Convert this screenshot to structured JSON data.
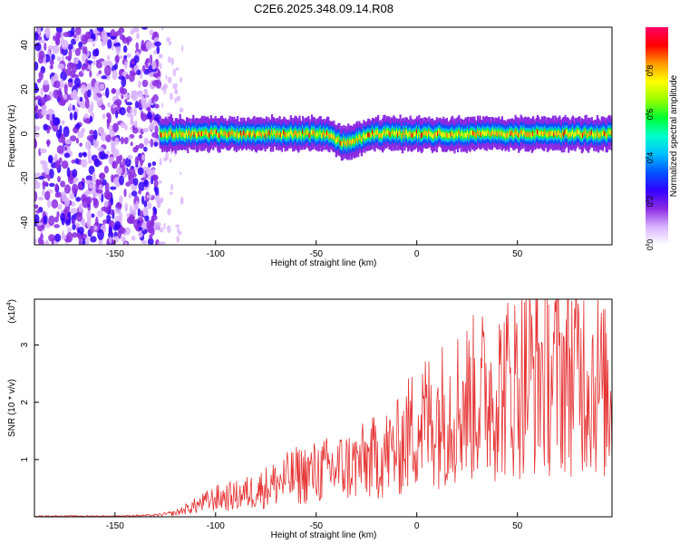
{
  "page_title": "C2E6.2025.348.09.14.R08",
  "chart_data": [
    {
      "type": "heatmap",
      "title": "C2E6.2025.348.09.14.R08",
      "xlabel": "Height of straight line (km)",
      "ylabel": "Frequency (Hz)",
      "xlim": [
        -190,
        97
      ],
      "ylim": [
        -50,
        48
      ],
      "xticks": [
        -150,
        -100,
        -50,
        0,
        50
      ],
      "yticks": [
        -40,
        -20,
        0,
        20,
        40
      ],
      "colorbar": {
        "label": "Normalized spectral amplitude",
        "range": [
          0.0,
          1.0
        ],
        "ticks": [
          0.0,
          0.2,
          0.4,
          0.6,
          0.8
        ],
        "colors": [
          "#ffffff",
          "#d9b3ff",
          "#8a2be2",
          "#3300ff",
          "#0055ff",
          "#00bfff",
          "#00ffcc",
          "#00ff33",
          "#99ff00",
          "#ffff00",
          "#ff9900",
          "#ff0000",
          "#ff0066"
        ]
      },
      "regions": [
        {
          "name": "noise",
          "x_range": [
            -190,
            -128
          ],
          "freq_range": [
            -50,
            48
          ],
          "amplitude": 0.15
        },
        {
          "name": "signal-ridge",
          "x_range": [
            -128,
            97
          ],
          "center_freq": 0,
          "amplitude": 0.85
        }
      ]
    },
    {
      "type": "line",
      "xlabel": "Height of straight line (km)",
      "ylabel": "SNR (10 * v/v)",
      "scale_label": "(x10",
      "scale_exponent": "4",
      "scale_close": ")",
      "xlim": [
        -190,
        97
      ],
      "ylim": [
        0,
        3.8
      ],
      "xticks": [
        -150,
        -100,
        -50,
        0,
        50
      ],
      "yticks": [
        1,
        2,
        3
      ],
      "color": "#e53333",
      "series": [
        {
          "name": "SNR",
          "x": [
            -190,
            -150,
            -130,
            -120,
            -110,
            -100,
            -90,
            -80,
            -70,
            -60,
            -50,
            -40,
            -30,
            -20,
            -10,
            0,
            10,
            20,
            30,
            40,
            50,
            60,
            70,
            80,
            90,
            97
          ],
          "y": [
            0.01,
            0.01,
            0.02,
            0.05,
            0.15,
            0.25,
            0.28,
            0.35,
            0.45,
            0.55,
            0.6,
            0.65,
            0.7,
            0.8,
            0.9,
            1.25,
            1.35,
            1.5,
            1.6,
            1.7,
            1.8,
            1.95,
            1.9,
            2.0,
            1.8,
            1.5
          ]
        }
      ]
    }
  ]
}
